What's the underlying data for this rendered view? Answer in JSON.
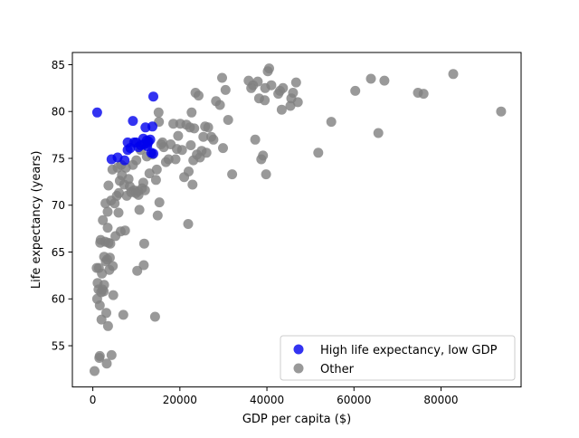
{
  "chart_data": {
    "type": "scatter",
    "xlabel": "GDP per capita ($)",
    "ylabel": "Life expectancy (years)",
    "xlim": [
      -4700,
      98400
    ],
    "ylim": [
      50.6,
      86.3
    ],
    "xticks": [
      0,
      20000,
      40000,
      60000,
      80000
    ],
    "yticks": [
      55,
      60,
      65,
      70,
      75,
      80,
      85
    ],
    "grid": false,
    "legend_position": "lower-right",
    "series": [
      {
        "name": "High life expectancy, low GDP",
        "color": "#0000ee",
        "points": [
          [
            1000,
            79.9
          ],
          [
            4300,
            74.9
          ],
          [
            5700,
            75.1
          ],
          [
            7300,
            74.8
          ],
          [
            8000,
            76.7
          ],
          [
            8000,
            75.9
          ],
          [
            8600,
            76.1
          ],
          [
            9200,
            79.0
          ],
          [
            9500,
            76.7
          ],
          [
            10000,
            76.7
          ],
          [
            10500,
            76.2
          ],
          [
            11000,
            76.4
          ],
          [
            11600,
            77.1
          ],
          [
            11700,
            76.5
          ],
          [
            12100,
            78.3
          ],
          [
            12400,
            76.9
          ],
          [
            12600,
            76.6
          ],
          [
            12800,
            76.8
          ],
          [
            13200,
            77.0
          ],
          [
            13400,
            75.6
          ],
          [
            13900,
            75.5
          ],
          [
            13700,
            78.4
          ],
          [
            13900,
            81.6
          ],
          [
            12500,
            76.3
          ]
        ]
      },
      {
        "name": "Other",
        "color": "#808080",
        "points": [
          [
            400,
            52.3
          ],
          [
            900,
            63.3
          ],
          [
            1000,
            60.0
          ],
          [
            1100,
            61.7
          ],
          [
            1300,
            61.0
          ],
          [
            1400,
            63.3
          ],
          [
            1500,
            53.7
          ],
          [
            1600,
            53.9
          ],
          [
            1600,
            59.3
          ],
          [
            1700,
            66.0
          ],
          [
            1800,
            66.3
          ],
          [
            1900,
            60.7
          ],
          [
            2000,
            57.8
          ],
          [
            2100,
            62.7
          ],
          [
            2200,
            61.0
          ],
          [
            2300,
            68.4
          ],
          [
            2500,
            60.8
          ],
          [
            2600,
            61.5
          ],
          [
            2600,
            64.5
          ],
          [
            2800,
            66.1
          ],
          [
            2900,
            70.2
          ],
          [
            3000,
            64.0
          ],
          [
            3100,
            58.5
          ],
          [
            3200,
            53.1
          ],
          [
            3300,
            64.2
          ],
          [
            3400,
            67.6
          ],
          [
            3400,
            69.3
          ],
          [
            3500,
            57.1
          ],
          [
            3600,
            66.0
          ],
          [
            3600,
            72.1
          ],
          [
            3800,
            63.1
          ],
          [
            3900,
            64.4
          ],
          [
            4000,
            65.9
          ],
          [
            4200,
            70.5
          ],
          [
            4300,
            54.0
          ],
          [
            4500,
            73.8
          ],
          [
            4600,
            63.5
          ],
          [
            4700,
            60.4
          ],
          [
            5000,
            70.2
          ],
          [
            5200,
            66.7
          ],
          [
            5500,
            71.0
          ],
          [
            5700,
            74.0
          ],
          [
            5900,
            69.2
          ],
          [
            6000,
            71.3
          ],
          [
            6200,
            72.6
          ],
          [
            6400,
            67.2
          ],
          [
            6500,
            74.3
          ],
          [
            6700,
            73.2
          ],
          [
            7000,
            58.3
          ],
          [
            7200,
            72.2
          ],
          [
            7400,
            67.3
          ],
          [
            7600,
            74.0
          ],
          [
            7800,
            71.0
          ],
          [
            8200,
            72.8
          ],
          [
            8500,
            72.0
          ],
          [
            8800,
            71.4
          ],
          [
            9200,
            74.3
          ],
          [
            9500,
            71.6
          ],
          [
            9900,
            71.3
          ],
          [
            10000,
            74.8
          ],
          [
            10200,
            63.0
          ],
          [
            10400,
            71.5
          ],
          [
            10500,
            71.1
          ],
          [
            10700,
            69.5
          ],
          [
            11000,
            75.9
          ],
          [
            11300,
            71.8
          ],
          [
            11600,
            72.4
          ],
          [
            11700,
            63.6
          ],
          [
            11800,
            65.9
          ],
          [
            12000,
            71.6
          ],
          [
            12400,
            75.2
          ],
          [
            13000,
            73.4
          ],
          [
            13600,
            75.4
          ],
          [
            14300,
            58.1
          ],
          [
            14500,
            72.7
          ],
          [
            14700,
            73.8
          ],
          [
            14900,
            68.9
          ],
          [
            15100,
            79.9
          ],
          [
            15200,
            78.9
          ],
          [
            15300,
            70.3
          ],
          [
            15700,
            76.5
          ],
          [
            16000,
            76.7
          ],
          [
            16300,
            76.2
          ],
          [
            16800,
            74.6
          ],
          [
            17400,
            74.9
          ],
          [
            17900,
            76.5
          ],
          [
            18500,
            78.7
          ],
          [
            19000,
            74.9
          ],
          [
            19300,
            76.0
          ],
          [
            19600,
            77.4
          ],
          [
            20100,
            78.7
          ],
          [
            20500,
            75.9
          ],
          [
            21000,
            73.0
          ],
          [
            21500,
            78.6
          ],
          [
            21900,
            68.0
          ],
          [
            22000,
            73.6
          ],
          [
            22300,
            78.3
          ],
          [
            22500,
            76.4
          ],
          [
            22700,
            79.9
          ],
          [
            22900,
            72.2
          ],
          [
            23100,
            74.8
          ],
          [
            23300,
            78.2
          ],
          [
            23600,
            82.0
          ],
          [
            23900,
            75.4
          ],
          [
            24300,
            81.7
          ],
          [
            24600,
            75.1
          ],
          [
            25000,
            75.8
          ],
          [
            25400,
            77.3
          ],
          [
            25800,
            78.4
          ],
          [
            26100,
            75.6
          ],
          [
            26500,
            78.3
          ],
          [
            27200,
            77.3
          ],
          [
            27700,
            77.0
          ],
          [
            28300,
            81.1
          ],
          [
            29200,
            80.7
          ],
          [
            29700,
            83.6
          ],
          [
            29900,
            76.1
          ],
          [
            30500,
            82.3
          ],
          [
            31100,
            79.1
          ],
          [
            32000,
            73.3
          ],
          [
            35800,
            83.3
          ],
          [
            36400,
            82.5
          ],
          [
            36800,
            82.8
          ],
          [
            37300,
            77.0
          ],
          [
            37900,
            83.2
          ],
          [
            38200,
            81.4
          ],
          [
            38700,
            74.9
          ],
          [
            39100,
            75.3
          ],
          [
            39500,
            81.2
          ],
          [
            39600,
            82.5
          ],
          [
            39800,
            73.3
          ],
          [
            40200,
            84.3
          ],
          [
            40500,
            84.6
          ],
          [
            41000,
            82.8
          ],
          [
            42600,
            81.9
          ],
          [
            43000,
            82.2
          ],
          [
            43400,
            80.2
          ],
          [
            43700,
            82.5
          ],
          [
            45400,
            80.6
          ],
          [
            45600,
            81.4
          ],
          [
            46000,
            82.0
          ],
          [
            46700,
            83.1
          ],
          [
            47100,
            81.0
          ],
          [
            54800,
            78.9
          ],
          [
            51800,
            75.6
          ],
          [
            60300,
            82.2
          ],
          [
            63900,
            83.5
          ],
          [
            65600,
            77.7
          ],
          [
            67000,
            83.3
          ],
          [
            74700,
            82.0
          ],
          [
            76000,
            81.9
          ],
          [
            82800,
            84.0
          ],
          [
            93800,
            80.0
          ]
        ]
      }
    ]
  }
}
